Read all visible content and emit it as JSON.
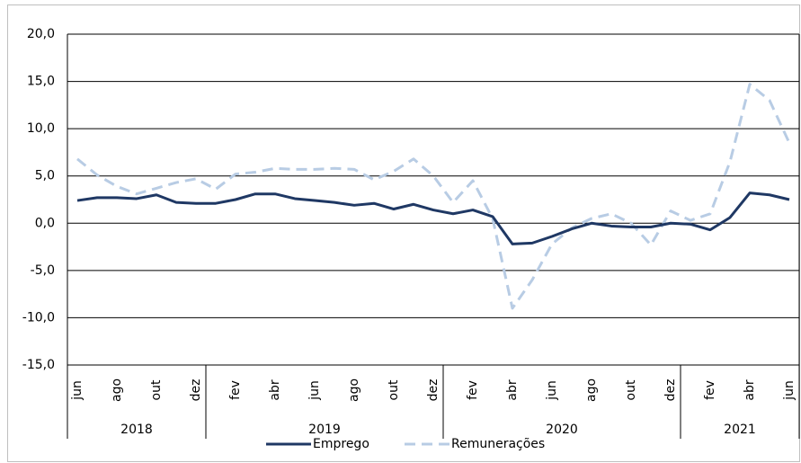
{
  "chart_data": {
    "type": "line",
    "categories": [
      "jun",
      null,
      "ago",
      null,
      "out",
      null,
      "dez",
      null,
      "fev",
      null,
      "abr",
      null,
      "jun",
      null,
      "ago",
      null,
      "out",
      null,
      "dez",
      null,
      "fev",
      null,
      "abr",
      null,
      "jun",
      null,
      "ago",
      null,
      "out",
      null,
      "dez",
      null,
      "fev",
      null,
      "abr",
      null,
      "jun"
    ],
    "x_groups": [
      {
        "label": "2018",
        "months": 7
      },
      {
        "label": "2019",
        "months": 12
      },
      {
        "label": "2020",
        "months": 12
      },
      {
        "label": "2021",
        "months": 6
      }
    ],
    "series": [
      {
        "name": "Emprego",
        "color": "#1f3864",
        "dashed": false,
        "values": [
          2.4,
          2.7,
          2.7,
          2.6,
          3.0,
          2.2,
          2.1,
          2.1,
          2.5,
          3.1,
          3.1,
          2.6,
          2.4,
          2.2,
          1.9,
          2.1,
          1.5,
          2.0,
          1.4,
          1.0,
          1.4,
          0.7,
          -2.2,
          -2.1,
          -1.4,
          -0.6,
          0.0,
          -0.3,
          -0.4,
          -0.4,
          0.0,
          -0.1,
          -0.7,
          0.6,
          3.2,
          3.0,
          2.5
        ]
      },
      {
        "name": "Remunerações",
        "color": "#b8cce4",
        "dashed": true,
        "values": [
          6.8,
          5.1,
          3.9,
          3.1,
          3.7,
          4.3,
          4.7,
          3.6,
          5.2,
          5.4,
          5.8,
          5.7,
          5.7,
          5.8,
          5.7,
          4.6,
          5.5,
          6.8,
          5.0,
          2.2,
          4.5,
          0.5,
          -9.0,
          -6.0,
          -2.2,
          -0.5,
          0.5,
          1.0,
          0.0,
          -2.3,
          1.3,
          0.3,
          1.0,
          6.5,
          14.7,
          13.0,
          8.5
        ]
      }
    ],
    "ylim": [
      -15,
      20
    ],
    "yticks": [
      {
        "value": -15,
        "label": "-15,0"
      },
      {
        "value": -10,
        "label": "-10,0"
      },
      {
        "value": -5,
        "label": "-5,0"
      },
      {
        "value": 0,
        "label": "0,0"
      },
      {
        "value": 5,
        "label": "5,0"
      },
      {
        "value": 10,
        "label": "10,0"
      },
      {
        "value": 15,
        "label": "15,0"
      },
      {
        "value": 20,
        "label": "20,0"
      }
    ],
    "grid": true,
    "legend": "bottom"
  }
}
